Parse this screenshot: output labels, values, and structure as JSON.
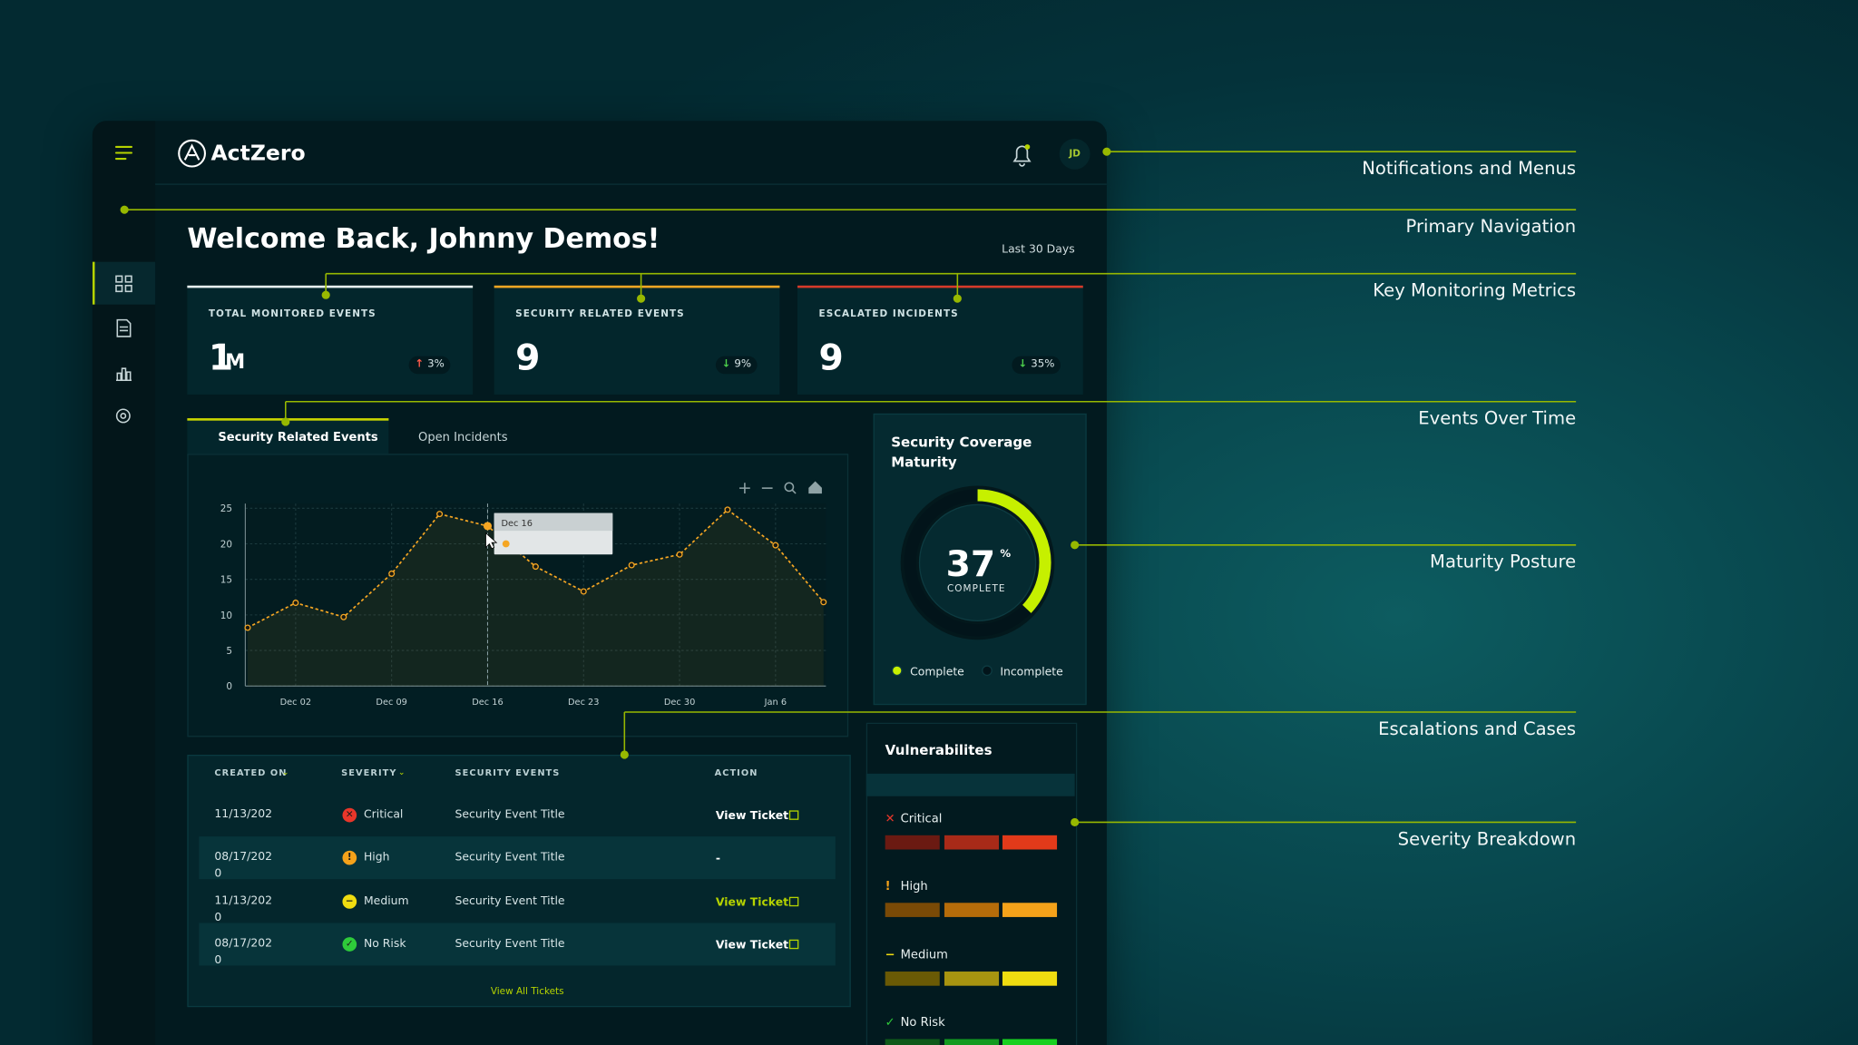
{
  "header": {
    "brand": "ActZero",
    "avatar": "JD"
  },
  "greeting": "Welcome Back, Johnny Demos!",
  "period": "Last 30 Days",
  "metrics": [
    {
      "label": "TOTAL MONITORED EVENTS",
      "value": "1",
      "unit": "M",
      "change": "3%",
      "trend": "up"
    },
    {
      "label": "SECURITY RELATED EVENTS",
      "value": "9",
      "change": "9%",
      "trend": "down"
    },
    {
      "label": "ESCALATED INCIDENTS",
      "value": "9",
      "change": "35%",
      "trend": "down"
    }
  ],
  "tabs": [
    "Security Related Events",
    "Open Incidents"
  ],
  "chart_data": {
    "type": "line",
    "categories": [
      null,
      "Dec 02",
      null,
      "Dec 09",
      null,
      "Dec 16",
      null,
      "Dec 23",
      null,
      "Dec 30",
      null,
      "Jan 6",
      null
    ],
    "values": [
      8.2,
      11.7,
      9.7,
      15.8,
      24.2,
      22.5,
      16.8,
      13.3,
      17,
      18.5,
      24.8,
      19.8,
      11.8
    ],
    "color": "#f5a623",
    "ylim": [
      0,
      25
    ],
    "yticks": [
      0,
      5,
      10,
      15,
      20,
      25
    ],
    "grid": true,
    "tooltip": "Dec 16"
  },
  "maturity": {
    "title": "Security Coverage Maturity",
    "value": 37,
    "unit": "%",
    "caption": "COMPLETE",
    "legend": [
      "Complete",
      "Incomplete"
    ],
    "color": "#c6f000"
  },
  "table": {
    "columns": [
      "CREATED ON",
      "SEVERITY",
      "SECURITY EVENTS",
      "ACTION"
    ],
    "rows": [
      [
        "11/13/202",
        "Critical",
        "Security Event Title",
        "View Ticket"
      ],
      [
        "08/17/2020",
        "High",
        "Security Event Title",
        "-"
      ],
      [
        "11/13/2020",
        "Medium",
        "Security Event Title",
        "View Ticket"
      ],
      [
        "08/17/2020",
        "No Risk",
        "Security Event Title",
        "View Ticket"
      ]
    ],
    "footer": "View All Tickets"
  },
  "vulnerabilities": {
    "title": "Vulnerabilites",
    "levels": [
      "Critical",
      "High",
      "Medium",
      "No Risk"
    ]
  },
  "annotations": [
    "Notifications and Menus",
    "Primary Navigation",
    "Key Monitoring Metrics",
    "Events Over Time",
    "Maturity Posture",
    "Escalations and Cases",
    "Severity Breakdown"
  ]
}
